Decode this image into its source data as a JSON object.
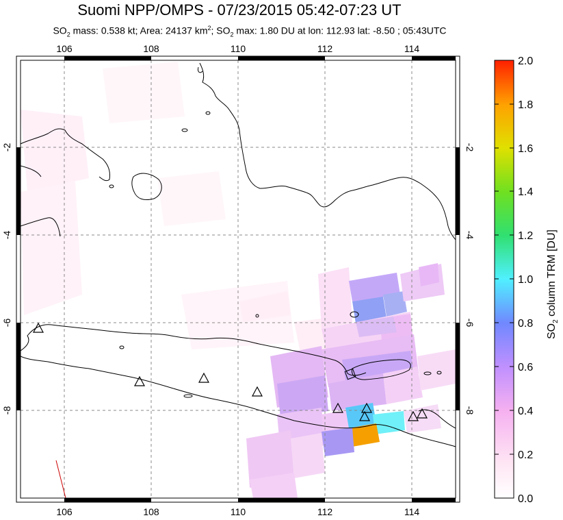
{
  "title": "Suomi NPP/OMPS - 07/23/2015 05:42-07:23 UT",
  "subtitle": {
    "so2_mass_prefix": "SO",
    "so2_mass_text": " mass: 0.538 kt; Area: 24137 km",
    "area_sup": "2",
    "max_prefix": "; SO",
    "max_text": " max: 1.80 DU at lon: 112.93 lat: -8.50 ; 05:43UTC",
    "sub2": "2"
  },
  "map": {
    "lon_ticks": [
      "106",
      "108",
      "110",
      "112",
      "114"
    ],
    "lat_ticks": [
      "-2",
      "-4",
      "-6",
      "-8"
    ],
    "lon_range": [
      105,
      115
    ],
    "lat_range": [
      -10,
      0
    ]
  },
  "colorbar": {
    "ticks": [
      "2.0",
      "1.8",
      "1.6",
      "1.4",
      "1.2",
      "1.0",
      "0.8",
      "0.6",
      "0.4",
      "0.2",
      "0.0"
    ],
    "label_prefix": "SO",
    "label_sub": "2",
    "label_suffix": " column TRM [DU]",
    "colors": [
      "#ff2a00",
      "#ff8c00",
      "#ffd200",
      "#a0f000",
      "#20e020",
      "#40f0c0",
      "#50e0ff",
      "#6090ff",
      "#a070ff",
      "#e090ff",
      "#ffd8f0",
      "#ffffff"
    ]
  },
  "volcano_marker_icon": "triangle-icon"
}
